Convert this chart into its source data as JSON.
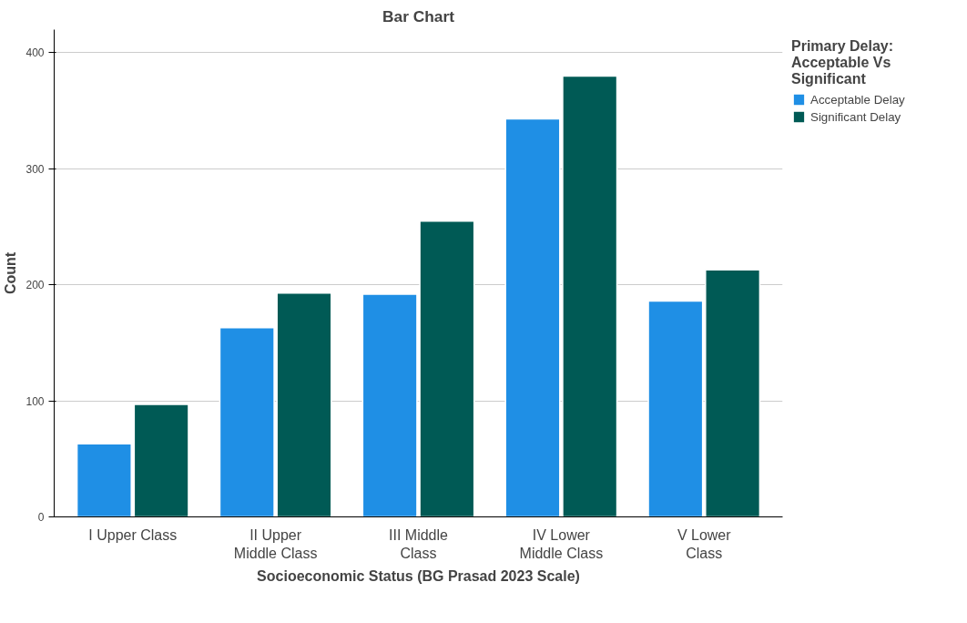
{
  "chart_data": {
    "type": "bar",
    "title": "Bar Chart",
    "xlabel": "Socioeconomic Status (BG Prasad 2023 Scale)",
    "ylabel": "Count",
    "legend_title": "Primary Delay:\nAcceptable Vs\nSignificant",
    "categories": [
      "I Upper Class",
      "II Upper\nMiddle Class",
      "III Middle\nClass",
      "IV Lower\nMiddle Class",
      "V Lower\nClass"
    ],
    "series": [
      {
        "name": "Acceptable Delay",
        "color": "#1f8fe5",
        "values": [
          63,
          163,
          192,
          343,
          186
        ]
      },
      {
        "name": "Significant Delay",
        "color": "#005a55",
        "values": [
          97,
          193,
          255,
          380,
          213
        ]
      }
    ],
    "ylim": [
      0,
      420
    ],
    "yticks": [
      0,
      100,
      200,
      300,
      400
    ],
    "grid": "y",
    "legend": "top right"
  }
}
